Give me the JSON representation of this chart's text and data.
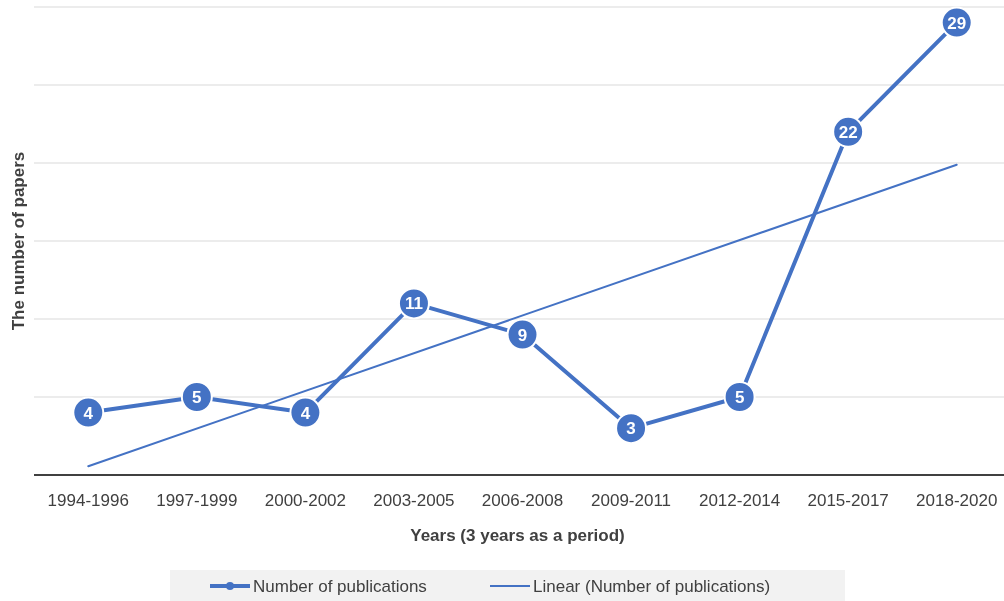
{
  "chart_data": {
    "type": "line",
    "xlabel": "Years (3 years as a period)",
    "ylabel": "The number of papers",
    "categories": [
      "1994-1996",
      "1997-1999",
      "2000-2002",
      "2003-2005",
      "2006-2008",
      "2009-2011",
      "2012-2014",
      "2015-2017",
      "2018-2020"
    ],
    "series": [
      {
        "name": "Number of publications",
        "color": "#4472c4",
        "marker": "circle",
        "values": [
          4,
          5,
          4,
          11,
          9,
          3,
          5,
          22,
          29
        ],
        "value_labels": [
          "4",
          "5",
          "4",
          "11",
          "9",
          "3",
          "5",
          "22",
          "29"
        ]
      },
      {
        "name": "Linear (Number of publications)",
        "color": "#4472c4",
        "marker": "none",
        "x": [
          "1994-1996",
          "2018-2020"
        ],
        "values": [
          0.56,
          19.89
        ]
      }
    ],
    "ylim": [
      0,
      30
    ],
    "yticks": [
      {
        "value": 0,
        "label": null
      },
      {
        "value": 5,
        "label": null
      },
      {
        "value": 10,
        "label": null
      },
      {
        "value": 15,
        "label": null
      },
      {
        "value": 20,
        "label": null
      },
      {
        "value": 25,
        "label": null
      },
      {
        "value": 30,
        "label": null
      }
    ],
    "tick_labels": "x",
    "grid": "y",
    "legend": "bottom"
  }
}
